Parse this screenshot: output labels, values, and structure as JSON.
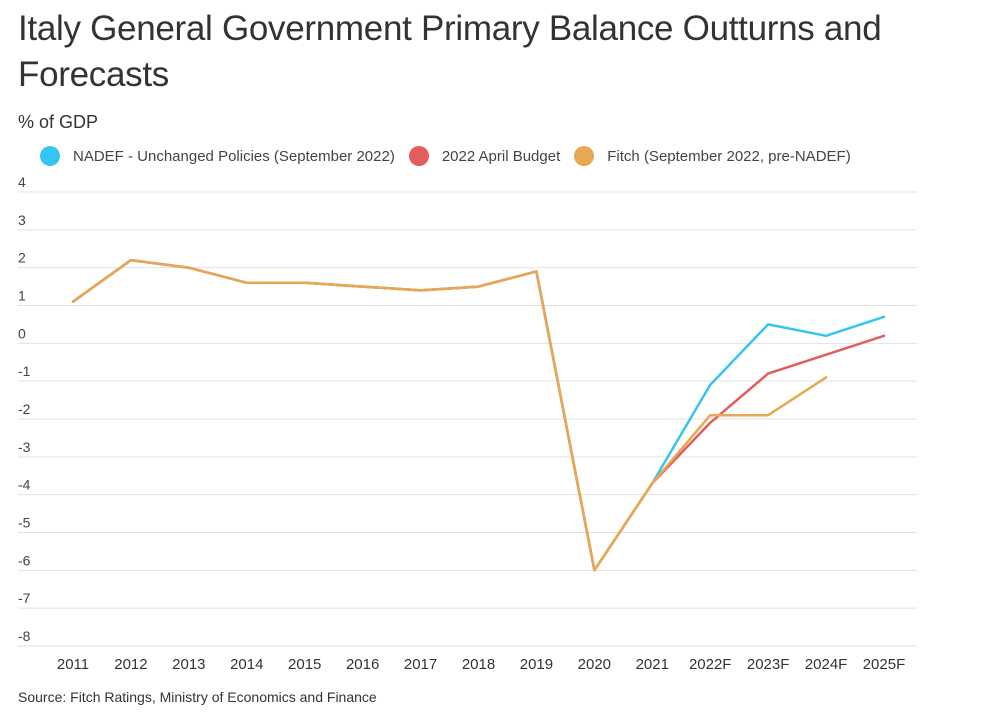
{
  "chart_data": {
    "type": "line",
    "title": "Italy General Government Primary Balance Outturns and Forecasts",
    "ylabel": "% of GDP",
    "xlabel": "",
    "categories": [
      "2011",
      "2012",
      "2013",
      "2014",
      "2015",
      "2016",
      "2017",
      "2018",
      "2019",
      "2020",
      "2021",
      "2022F",
      "2023F",
      "2024F",
      "2025F"
    ],
    "yticks": [
      "4",
      "3",
      "2",
      "1",
      "0",
      "-1",
      "-2",
      "-3",
      "-4",
      "-5",
      "-6",
      "-7",
      "-8"
    ],
    "ylim": [
      -8,
      4
    ],
    "grid": true,
    "legend_position": "top",
    "series": [
      {
        "name": "NADEF - Unchanged Policies (September 2022)",
        "color": "#36c5f0",
        "values": [
          1.1,
          2.2,
          2.0,
          1.6,
          1.6,
          1.5,
          1.4,
          1.5,
          1.9,
          -6.0,
          -3.7,
          -1.1,
          0.5,
          0.2,
          0.7
        ]
      },
      {
        "name": "2022 April Budget",
        "color": "#e45c5c",
        "values": [
          1.1,
          2.2,
          2.0,
          1.6,
          1.6,
          1.5,
          1.4,
          1.5,
          1.9,
          -6.0,
          -3.7,
          -2.1,
          -0.8,
          -0.3,
          0.2
        ]
      },
      {
        "name": "Fitch (September 2022, pre-NADEF)",
        "color": "#e8a852",
        "values": [
          1.1,
          2.2,
          2.0,
          1.6,
          1.6,
          1.5,
          1.4,
          1.5,
          1.9,
          -6.0,
          -3.7,
          -1.9,
          -1.9,
          -0.9,
          null
        ]
      }
    ]
  },
  "source": "Source: Fitch Ratings, Ministry of Economics and Finance"
}
